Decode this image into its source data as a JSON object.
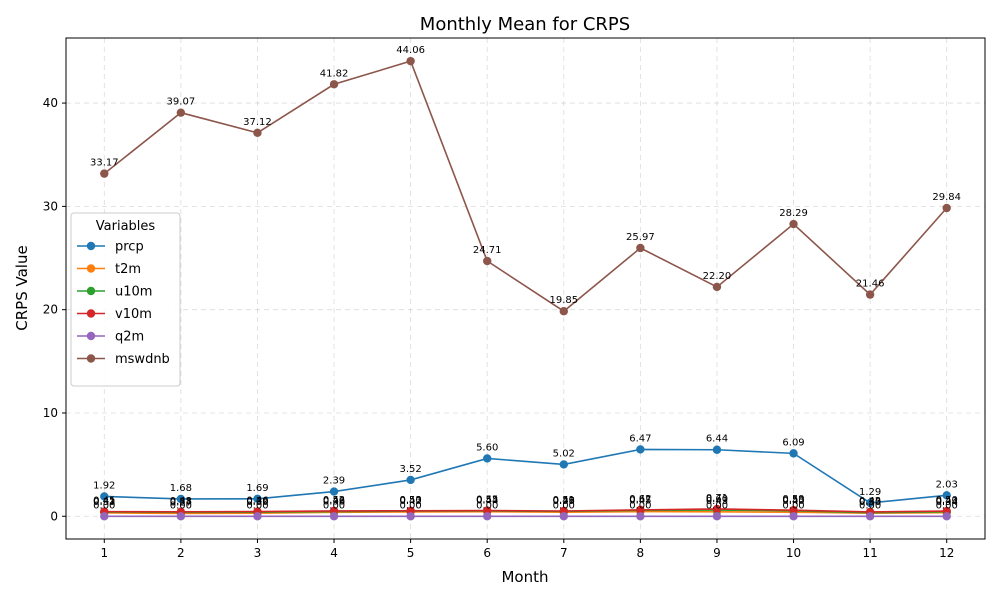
{
  "chart_data": {
    "type": "line",
    "title": "Monthly Mean for CRPS",
    "xlabel": "Month",
    "ylabel": "CRPS Value",
    "x": [
      1,
      2,
      3,
      4,
      5,
      6,
      7,
      8,
      9,
      10,
      11,
      12
    ],
    "xlim": [
      0.5,
      12.5
    ],
    "ylim": [
      -2.2,
      46.3
    ],
    "yticks": [
      0,
      10,
      20,
      30,
      40
    ],
    "grid": true,
    "legend": {
      "title": "Variables",
      "placement": "center-left"
    },
    "series": [
      {
        "name": "prcp",
        "color": "#1f77b4",
        "values": [
          1.92,
          1.68,
          1.69,
          2.39,
          3.52,
          5.6,
          5.02,
          6.47,
          6.44,
          6.09,
          1.29,
          2.03
        ],
        "labels": [
          "1.92",
          "1.68",
          "1.69",
          "2.39",
          "3.52",
          "5.60",
          "5.02",
          "6.47",
          "6.44",
          "6.09",
          "1.29",
          "2.03"
        ]
      },
      {
        "name": "t2m",
        "color": "#ff7f0e",
        "values": [
          0.33,
          0.27,
          0.3,
          0.38,
          0.42,
          0.44,
          0.39,
          0.45,
          0.43,
          0.4,
          0.3,
          0.34
        ],
        "labels": [
          "0.33",
          "0.27",
          "0.30",
          "0.38",
          "0.42",
          "0.44",
          "0.39",
          "0.45",
          "0.43",
          "0.40",
          "0.30",
          "0.34"
        ]
      },
      {
        "name": "u10m",
        "color": "#2ca02c",
        "values": [
          0.41,
          0.38,
          0.39,
          0.46,
          0.5,
          0.52,
          0.48,
          0.57,
          0.6,
          0.53,
          0.35,
          0.43
        ],
        "labels": [
          "0.41",
          "0.38",
          "0.39",
          "0.46",
          "0.50",
          "0.52",
          "0.48",
          "0.57",
          "0.60",
          "0.53",
          "0.35",
          "0.43"
        ]
      },
      {
        "name": "v10m",
        "color": "#d62728",
        "values": [
          0.45,
          0.43,
          0.46,
          0.52,
          0.53,
          0.55,
          0.51,
          0.62,
          0.71,
          0.59,
          0.42,
          0.5
        ],
        "labels": [
          "0.45",
          "0.43",
          "0.46",
          "0.52",
          "0.53",
          "0.55",
          "0.51",
          "0.62",
          "0.71",
          "0.59",
          "0.42",
          "0.50"
        ]
      },
      {
        "name": "q2m",
        "color": "#9467bd",
        "values": [
          0.0,
          0.0,
          0.0,
          0.0,
          0.0,
          0.0,
          0.0,
          0.0,
          0.0,
          0.0,
          0.0,
          0.0
        ],
        "labels": [
          "0.00",
          "0.00",
          "0.00",
          "0.00",
          "0.00",
          "0.00",
          "0.00",
          "0.00",
          "0.00",
          "0.00",
          "0.00",
          "0.00"
        ]
      },
      {
        "name": "mswdnb",
        "color": "#8c564b",
        "values": [
          33.17,
          39.07,
          37.12,
          41.82,
          44.06,
          24.71,
          19.85,
          25.97,
          22.2,
          28.29,
          21.46,
          29.84
        ],
        "labels": [
          "33.17",
          "39.07",
          "37.12",
          "41.82",
          "44.06",
          "24.71",
          "19.85",
          "25.97",
          "22.20",
          "28.29",
          "21.46",
          "29.84"
        ]
      }
    ]
  }
}
